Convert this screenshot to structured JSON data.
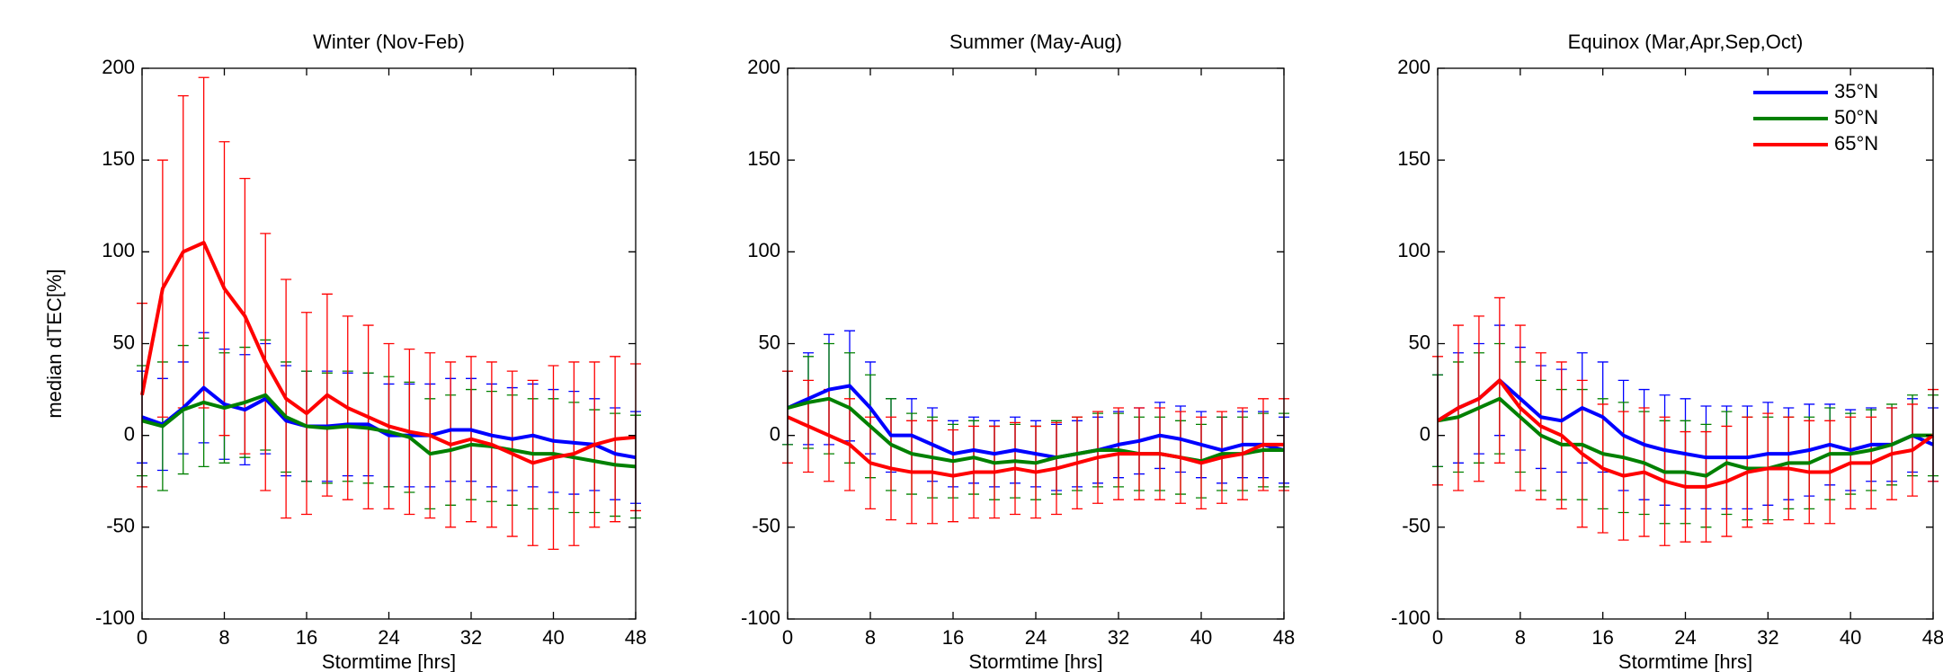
{
  "chart_data": [
    {
      "type": "line",
      "title": "Winter (Nov-Feb)",
      "xlabel": "Stormtime [hrs]",
      "ylabel": "median dTEC[%]",
      "x": [
        0,
        2,
        4,
        6,
        8,
        10,
        12,
        14,
        16,
        18,
        20,
        22,
        24,
        26,
        28,
        30,
        32,
        34,
        36,
        38,
        40,
        42,
        44,
        46,
        48
      ],
      "xlim": [
        0,
        48
      ],
      "ylim": [
        -100,
        200
      ],
      "xticks": [
        0,
        8,
        16,
        24,
        32,
        40,
        48
      ],
      "yticks": [
        -100,
        -50,
        0,
        50,
        100,
        150,
        200
      ],
      "series": [
        {
          "color": "#0000ff",
          "values": [
            10,
            6,
            15,
            26,
            17,
            14,
            20,
            8,
            5,
            5,
            6,
            6,
            0,
            0,
            0,
            3,
            3,
            0,
            -2,
            0,
            -3,
            -4,
            -5,
            -10,
            -12
          ],
          "errors": [
            25,
            25,
            25,
            30,
            30,
            30,
            30,
            30,
            30,
            30,
            28,
            28,
            28,
            28,
            28,
            28,
            28,
            28,
            28,
            28,
            28,
            28,
            25,
            25,
            25
          ]
        },
        {
          "color": "#008000",
          "values": [
            8,
            5,
            14,
            18,
            15,
            18,
            22,
            10,
            5,
            4,
            5,
            4,
            2,
            -1,
            -10,
            -8,
            -5,
            -6,
            -8,
            -10,
            -10,
            -12,
            -14,
            -16,
            -17
          ],
          "errors": [
            30,
            35,
            35,
            35,
            30,
            30,
            30,
            30,
            30,
            30,
            30,
            30,
            30,
            30,
            30,
            30,
            30,
            30,
            30,
            30,
            30,
            30,
            28,
            28,
            28
          ]
        },
        {
          "color": "#ff0000",
          "values": [
            22,
            80,
            100,
            105,
            80,
            65,
            40,
            20,
            12,
            22,
            15,
            10,
            5,
            2,
            0,
            -5,
            -2,
            -5,
            -10,
            -15,
            -12,
            -10,
            -5,
            -2,
            -1
          ],
          "errors": [
            50,
            70,
            85,
            90,
            80,
            75,
            70,
            65,
            55,
            55,
            50,
            50,
            45,
            45,
            45,
            45,
            45,
            45,
            45,
            45,
            50,
            50,
            45,
            45,
            40
          ]
        }
      ]
    },
    {
      "type": "line",
      "title": "Summer (May-Aug)",
      "xlabel": "Stormtime [hrs]",
      "x": [
        0,
        2,
        4,
        6,
        8,
        10,
        12,
        14,
        16,
        18,
        20,
        22,
        24,
        26,
        28,
        30,
        32,
        34,
        36,
        38,
        40,
        42,
        44,
        46,
        48
      ],
      "xlim": [
        0,
        48
      ],
      "ylim": [
        -100,
        200
      ],
      "xticks": [
        0,
        8,
        16,
        24,
        32,
        40,
        48
      ],
      "yticks": [
        -100,
        -50,
        0,
        50,
        100,
        150,
        200
      ],
      "series": [
        {
          "color": "#0000ff",
          "values": [
            15,
            20,
            25,
            27,
            15,
            0,
            0,
            -5,
            -10,
            -8,
            -10,
            -8,
            -10,
            -12,
            -10,
            -8,
            -5,
            -3,
            0,
            -2,
            -5,
            -8,
            -5,
            -5,
            -8
          ],
          "errors": [
            20,
            25,
            30,
            30,
            25,
            20,
            20,
            20,
            18,
            18,
            18,
            18,
            18,
            18,
            18,
            18,
            18,
            18,
            18,
            18,
            18,
            18,
            18,
            18,
            18
          ]
        },
        {
          "color": "#008000",
          "values": [
            15,
            18,
            20,
            15,
            5,
            -5,
            -10,
            -12,
            -14,
            -12,
            -15,
            -14,
            -15,
            -12,
            -10,
            -8,
            -8,
            -10,
            -10,
            -12,
            -14,
            -10,
            -10,
            -8,
            -8
          ],
          "errors": [
            20,
            25,
            30,
            30,
            28,
            25,
            22,
            22,
            20,
            20,
            20,
            20,
            20,
            20,
            20,
            20,
            20,
            20,
            20,
            20,
            20,
            20,
            20,
            20,
            20
          ]
        },
        {
          "color": "#ff0000",
          "values": [
            10,
            5,
            0,
            -5,
            -15,
            -18,
            -20,
            -20,
            -22,
            -20,
            -20,
            -18,
            -20,
            -18,
            -15,
            -12,
            -10,
            -10,
            -10,
            -12,
            -15,
            -12,
            -10,
            -5,
            -5
          ],
          "errors": [
            25,
            25,
            25,
            25,
            25,
            28,
            28,
            28,
            25,
            25,
            25,
            25,
            25,
            25,
            25,
            25,
            25,
            25,
            25,
            25,
            25,
            25,
            25,
            25,
            25
          ]
        }
      ]
    },
    {
      "type": "line",
      "title": "Equinox (Mar,Apr,Sep,Oct)",
      "xlabel": "Stormtime [hrs]",
      "x": [
        0,
        2,
        4,
        6,
        8,
        10,
        12,
        14,
        16,
        18,
        20,
        22,
        24,
        26,
        28,
        30,
        32,
        34,
        36,
        38,
        40,
        42,
        44,
        46,
        48
      ],
      "xlim": [
        0,
        48
      ],
      "ylim": [
        -100,
        200
      ],
      "xticks": [
        0,
        8,
        16,
        24,
        32,
        40,
        48
      ],
      "yticks": [
        -100,
        -50,
        0,
        50,
        100,
        150,
        200
      ],
      "legend": "upper right",
      "series": [
        {
          "name": "35°N",
          "color": "#0000ff",
          "values": [
            8,
            15,
            20,
            30,
            20,
            10,
            8,
            15,
            10,
            0,
            -5,
            -8,
            -10,
            -12,
            -12,
            -12,
            -10,
            -10,
            -8,
            -5,
            -8,
            -5,
            -5,
            0,
            -5
          ],
          "errors": [
            25,
            30,
            30,
            30,
            28,
            28,
            28,
            30,
            30,
            30,
            30,
            30,
            30,
            28,
            28,
            28,
            28,
            25,
            25,
            22,
            22,
            20,
            20,
            20,
            20
          ]
        },
        {
          "name": "50°N",
          "color": "#008000",
          "values": [
            8,
            10,
            15,
            20,
            10,
            0,
            -5,
            -5,
            -10,
            -12,
            -15,
            -20,
            -20,
            -22,
            -15,
            -18,
            -18,
            -15,
            -15,
            -10,
            -10,
            -8,
            -5,
            0,
            0
          ],
          "errors": [
            25,
            30,
            30,
            30,
            30,
            30,
            30,
            30,
            30,
            30,
            28,
            28,
            28,
            28,
            28,
            28,
            28,
            25,
            25,
            25,
            22,
            22,
            22,
            22,
            22
          ]
        },
        {
          "name": "65°N",
          "color": "#ff0000",
          "values": [
            8,
            15,
            20,
            30,
            15,
            5,
            0,
            -10,
            -18,
            -22,
            -20,
            -25,
            -28,
            -28,
            -25,
            -20,
            -18,
            -18,
            -20,
            -20,
            -15,
            -15,
            -10,
            -8,
            0
          ],
          "errors": [
            35,
            45,
            45,
            45,
            45,
            40,
            40,
            40,
            35,
            35,
            35,
            35,
            30,
            30,
            30,
            30,
            30,
            28,
            28,
            28,
            25,
            25,
            25,
            25,
            25
          ]
        }
      ]
    }
  ]
}
